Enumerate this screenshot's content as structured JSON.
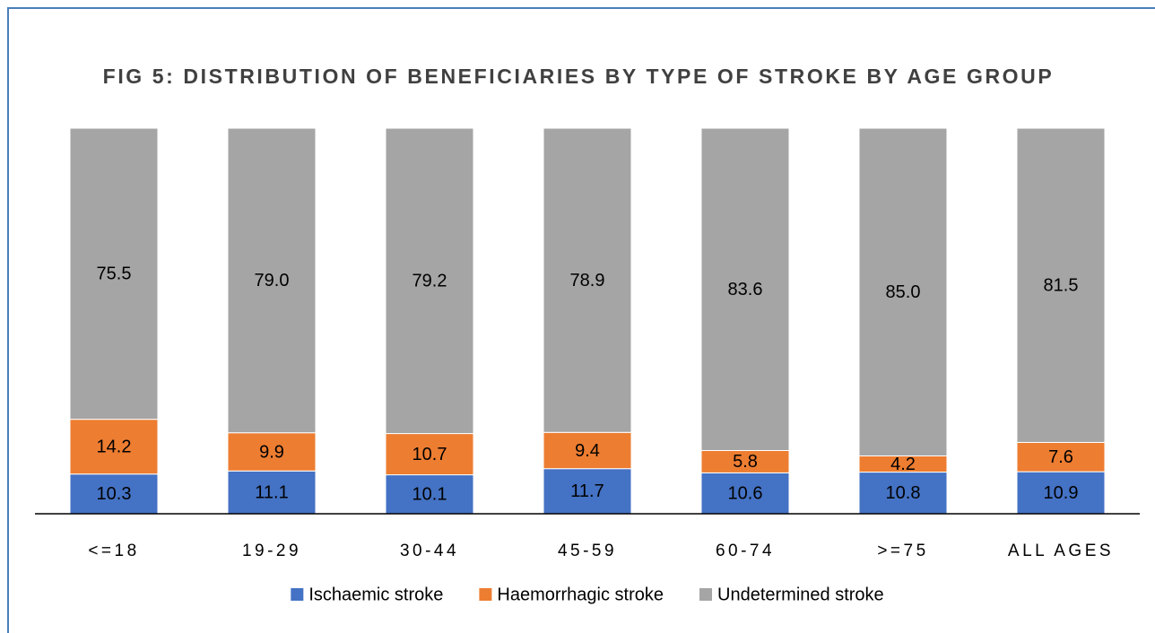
{
  "chart_data": {
    "type": "stacked_bar",
    "title": "FIG 5: DISTRIBUTION OF BENEFICIARIES BY TYPE OF STROKE BY AGE GROUP",
    "categories": [
      "<=18",
      "19-29",
      "30-44",
      "45-59",
      "60-74",
      ">=75",
      "ALL AGES"
    ],
    "series": [
      {
        "name": "Ischaemic stroke",
        "color": "#4472c4",
        "values": [
          10.3,
          11.1,
          10.1,
          11.7,
          10.6,
          10.8,
          10.9
        ],
        "value_labels": [
          "10.3",
          "11.1",
          "10.1",
          "11.7",
          "10.6",
          "10.8",
          "10.9"
        ]
      },
      {
        "name": "Haemorrhagic stroke",
        "color": "#ed7d31",
        "values": [
          14.2,
          9.9,
          10.7,
          9.4,
          5.8,
          4.2,
          7.6
        ],
        "value_labels": [
          "14.2",
          "9.9",
          "10.7",
          "9.4",
          "5.8",
          "4.2",
          "7.6"
        ]
      },
      {
        "name": "Undetermined stroke",
        "color": "#a5a5a5",
        "values": [
          75.5,
          79.0,
          79.2,
          78.9,
          83.6,
          85.0,
          81.5
        ],
        "value_labels": [
          "75.5",
          "79.0",
          "79.2",
          "78.9",
          "83.6",
          "85.0",
          "81.5"
        ]
      }
    ],
    "ylim": [
      0,
      100
    ],
    "legend": "bottom"
  }
}
